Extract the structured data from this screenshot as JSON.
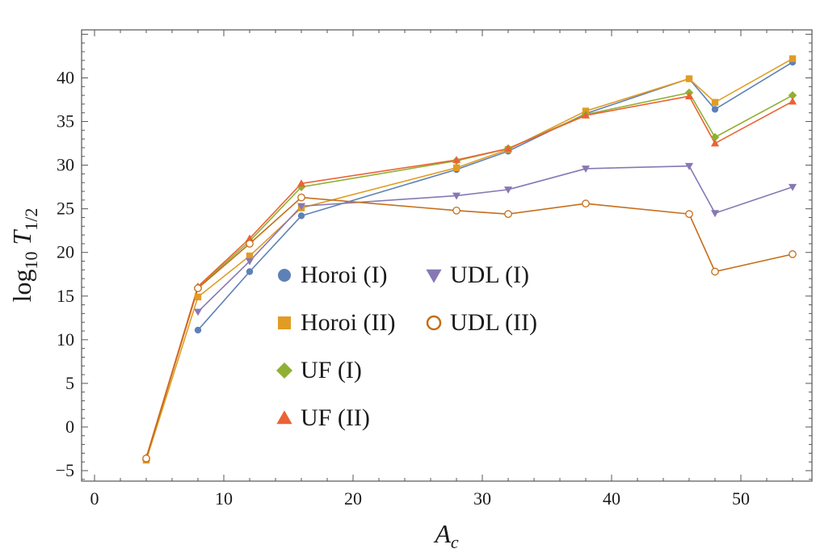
{
  "chart_data": {
    "type": "line",
    "title": "",
    "xlabel": "A",
    "xlabel_sub": "c",
    "ylabel": "log",
    "ylabel_sub": "10",
    "ylabel_var": "T",
    "ylabel_var_sub": "1/2",
    "xlim": [
      -1,
      55.5
    ],
    "ylim": [
      -6.2,
      45.5
    ],
    "xticks_major": [
      0,
      10,
      20,
      30,
      40,
      50
    ],
    "xtick_labels": [
      "0",
      "10",
      "20",
      "30",
      "40",
      "50"
    ],
    "yticks_major": [
      -5,
      0,
      5,
      10,
      15,
      20,
      25,
      30,
      35,
      40
    ],
    "ytick_labels": [
      "−5",
      "0",
      "5",
      "10",
      "15",
      "20",
      "25",
      "30",
      "35",
      "40"
    ],
    "x": [
      4,
      8,
      12,
      16,
      28,
      32,
      38,
      46,
      48,
      54
    ],
    "legend_position": "center-left",
    "grid": false,
    "series": [
      {
        "name": "Horoi (I)",
        "marker": "circle",
        "color": "#5E81B5",
        "values": [
          null,
          11.1,
          17.8,
          24.2,
          29.5,
          31.6,
          35.9,
          39.9,
          36.4,
          41.8
        ]
      },
      {
        "name": "Horoi (II)",
        "marker": "square",
        "color": "#E19C24",
        "values": [
          -3.8,
          14.9,
          19.6,
          25.1,
          29.7,
          31.8,
          36.2,
          39.9,
          37.2,
          42.2
        ]
      },
      {
        "name": "UF (I)",
        "marker": "diamond",
        "color": "#8FB032",
        "values": [
          -3.6,
          16.0,
          21.3,
          27.5,
          30.5,
          31.9,
          35.8,
          38.3,
          33.2,
          38.0
        ]
      },
      {
        "name": "UF (II)",
        "marker": "triangle",
        "color": "#EB6235",
        "values": [
          -3.5,
          16.1,
          21.6,
          27.9,
          30.6,
          31.9,
          35.7,
          37.9,
          32.5,
          37.3
        ]
      },
      {
        "name": "UDL (I)",
        "marker": "triangle-down",
        "color": "#8778B3",
        "values": [
          null,
          13.2,
          19.0,
          25.3,
          26.5,
          27.2,
          29.6,
          29.9,
          24.5,
          27.5
        ]
      },
      {
        "name": "UDL (II)",
        "marker": "open-circle",
        "color": "#C56E1A",
        "values": [
          -3.6,
          15.9,
          21.0,
          26.3,
          24.8,
          24.4,
          25.6,
          24.4,
          17.8,
          19.8
        ]
      }
    ]
  }
}
